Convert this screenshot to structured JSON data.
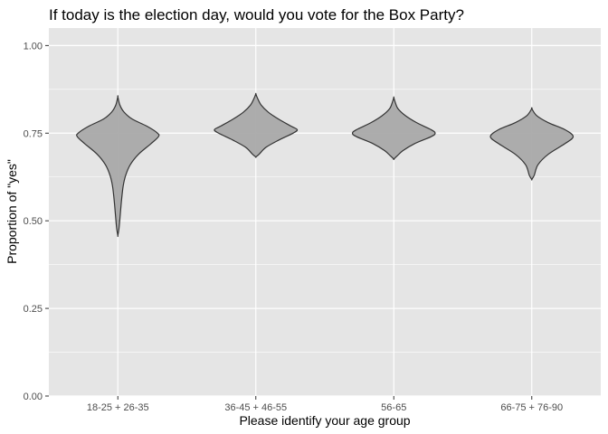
{
  "chart_data": {
    "type": "violin",
    "title": "If today is the election day, would you vote for the Box Party?",
    "xlabel": "Please identify your age group",
    "ylabel": "Proportion of \"yes\"",
    "ylim": [
      0,
      1.05
    ],
    "y_ticks": [
      0.0,
      0.25,
      0.5,
      0.75,
      1.0
    ],
    "y_tick_labels": [
      "0.00",
      "0.25",
      "0.50",
      "0.75",
      "1.00"
    ],
    "categories": [
      "18-25 + 26-35",
      "36-45 + 46-55",
      "56-65",
      "66-75 + 76-90"
    ],
    "grid": true,
    "legend": "none",
    "colors": {
      "panel_background": "#e5e5e5",
      "grid_line": "#ffffff",
      "violin_fill": "#a9a9a9",
      "violin_stroke": "#333333"
    },
    "violins": [
      {
        "category": "18-25 + 26-35",
        "profile": [
          [
            0.458,
            0.0
          ],
          [
            0.48,
            0.03
          ],
          [
            0.52,
            0.06
          ],
          [
            0.56,
            0.09
          ],
          [
            0.6,
            0.13
          ],
          [
            0.63,
            0.19
          ],
          [
            0.66,
            0.3
          ],
          [
            0.69,
            0.5
          ],
          [
            0.72,
            0.8
          ],
          [
            0.74,
            0.98
          ],
          [
            0.75,
            0.96
          ],
          [
            0.77,
            0.7
          ],
          [
            0.79,
            0.35
          ],
          [
            0.81,
            0.15
          ],
          [
            0.83,
            0.05
          ],
          [
            0.854,
            0.0
          ]
        ]
      },
      {
        "category": "36-45 + 46-55",
        "profile": [
          [
            0.682,
            0.0
          ],
          [
            0.69,
            0.08
          ],
          [
            0.71,
            0.25
          ],
          [
            0.73,
            0.55
          ],
          [
            0.75,
            0.9
          ],
          [
            0.76,
            1.0
          ],
          [
            0.77,
            0.85
          ],
          [
            0.79,
            0.55
          ],
          [
            0.81,
            0.3
          ],
          [
            0.83,
            0.13
          ],
          [
            0.85,
            0.04
          ],
          [
            0.862,
            0.0
          ]
        ]
      },
      {
        "category": "56-65",
        "profile": [
          [
            0.676,
            0.0
          ],
          [
            0.685,
            0.08
          ],
          [
            0.7,
            0.22
          ],
          [
            0.72,
            0.5
          ],
          [
            0.74,
            0.9
          ],
          [
            0.75,
            1.0
          ],
          [
            0.76,
            0.9
          ],
          [
            0.78,
            0.55
          ],
          [
            0.8,
            0.28
          ],
          [
            0.82,
            0.1
          ],
          [
            0.84,
            0.03
          ],
          [
            0.852,
            0.0
          ]
        ]
      },
      {
        "category": "66-75 + 76-90",
        "profile": [
          [
            0.618,
            0.0
          ],
          [
            0.63,
            0.06
          ],
          [
            0.66,
            0.15
          ],
          [
            0.69,
            0.4
          ],
          [
            0.72,
            0.8
          ],
          [
            0.74,
            1.0
          ],
          [
            0.76,
            0.8
          ],
          [
            0.78,
            0.4
          ],
          [
            0.8,
            0.12
          ],
          [
            0.82,
            0.0
          ]
        ]
      }
    ],
    "violin_max_width_fraction": 0.3
  }
}
